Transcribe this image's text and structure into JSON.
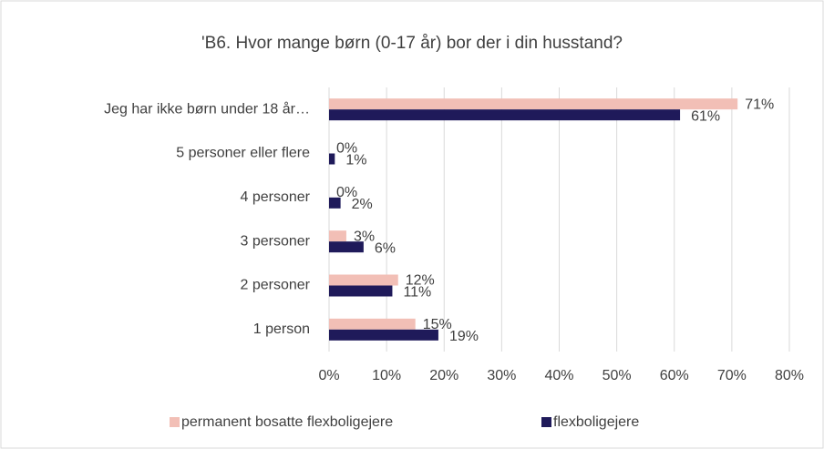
{
  "chart_data": {
    "type": "hbar",
    "title": "'B6. Hvor mange børn (0-17 år) bor der i din husstand?",
    "categories": [
      "Jeg har ikke børn under 18 år…",
      "5 personer eller flere",
      "4 personer",
      "3 personer",
      "2 personer",
      "1 person"
    ],
    "series": [
      {
        "name": "permanent bosatte flexboligejere",
        "color": "#f2bfb6",
        "values": [
          71,
          0,
          0,
          3,
          12,
          15
        ],
        "value_labels": [
          "71%",
          "0%",
          "0%",
          "3%",
          "12%",
          "15%"
        ]
      },
      {
        "name": "flexboligejere",
        "color": "#1f1a5a",
        "values": [
          61,
          1,
          2,
          6,
          11,
          19
        ],
        "value_labels": [
          "61%",
          "1%",
          "2%",
          "6%",
          "11%",
          "19%"
        ]
      }
    ],
    "xlim": [
      0,
      80
    ],
    "xticks": [
      {
        "value": 0,
        "label": "0%"
      },
      {
        "value": 10,
        "label": "10%"
      },
      {
        "value": 20,
        "label": "20%"
      },
      {
        "value": 30,
        "label": "30%"
      },
      {
        "value": 40,
        "label": "40%"
      },
      {
        "value": 50,
        "label": "50%"
      },
      {
        "value": 60,
        "label": "60%"
      },
      {
        "value": 70,
        "label": "70%"
      },
      {
        "value": 80,
        "label": "80%"
      }
    ],
    "grid": true,
    "legend": "bottom"
  }
}
